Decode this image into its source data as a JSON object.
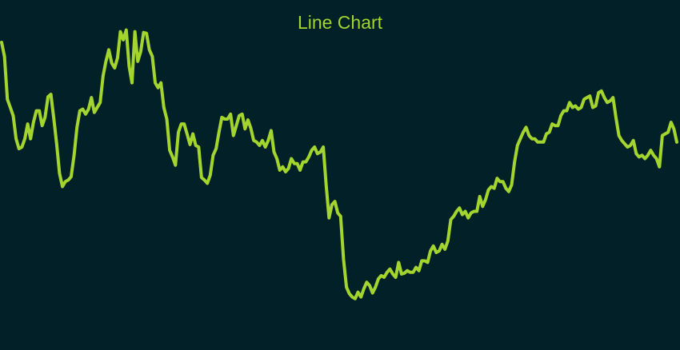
{
  "colors": {
    "background": "#012027",
    "line": "#a4d52e",
    "title": "#a4d52e"
  },
  "chart_data": {
    "type": "line",
    "title": "Line Chart",
    "xlabel": "",
    "ylabel": "",
    "grid": false,
    "axes_visible": false,
    "ylim": [
      0,
      350
    ],
    "series": [
      {
        "values": [
          349,
          332,
          280,
          270,
          260,
          232,
          220,
          222,
          232,
          250,
          232,
          252,
          266,
          266,
          248,
          258,
          283,
          286,
          257,
          226,
          190,
          174,
          180,
          182,
          186,
          212,
          246,
          266,
          268,
          262,
          268,
          282,
          264,
          270,
          276,
          308,
          326,
          340,
          324,
          318,
          330,
          362,
          352,
          364,
          320,
          300,
          362,
          326,
          338,
          361,
          360,
          340,
          332,
          300,
          294,
          300,
          270,
          256,
          218,
          210,
          200,
          240,
          250,
          250,
          238,
          225,
          238,
          224,
          222,
          185,
          182,
          178,
          188,
          212,
          220,
          240,
          258,
          256,
          256,
          262,
          236,
          248,
          260,
          262,
          244,
          255,
          245,
          230,
          228,
          224,
          230,
          222,
          230,
          242,
          216,
          208,
          194,
          198,
          192,
          196,
          208,
          202,
          202,
          194,
          204,
          204,
          210,
          218,
          222,
          214,
          216,
          222,
          176,
          136,
          152,
          156,
          142,
          138,
          86,
          52,
          44,
          40,
          38,
          46,
          40,
          50,
          58,
          54,
          45,
          52,
          62,
          66,
          64,
          70,
          74,
          68,
          64,
          82,
          68,
          69,
          72,
          70,
          70,
          76,
          72,
          84,
          84,
          82,
          96,
          102,
          94,
          96,
          104,
          98,
          108,
          134,
          138,
          144,
          148,
          140,
          144,
          136,
          142,
          144,
          144,
          162,
          150,
          158,
          170,
          174,
          172,
          184,
          180,
          180,
          172,
          168,
          176,
          204,
          224,
          232,
          240,
          246,
          236,
          232,
          232,
          228,
          228,
          228,
          238,
          240,
          250,
          248,
          248,
          260,
          266,
          266,
          276,
          270,
          272,
          268,
          270,
          280,
          282,
          284,
          270,
          272,
          288,
          290,
          282,
          276,
          278,
          282,
          258,
          236,
          230,
          226,
          222,
          224,
          230,
          214,
          210,
          212,
          208,
          212,
          218,
          212,
          208,
          198,
          236,
          238,
          240,
          252,
          244,
          228
        ]
      }
    ]
  }
}
